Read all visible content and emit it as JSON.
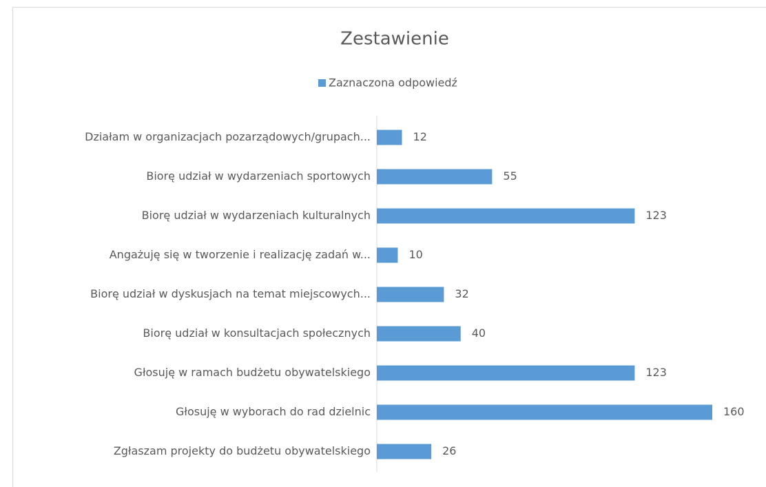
{
  "chart_data": {
    "type": "bar",
    "orientation": "horizontal",
    "title": "Zestawienie",
    "categories": [
      "Działam w organizacjach pozarządowych/grupach...",
      "Biorę udział w wydarzeniach sportowych",
      "Biorę udział w wydarzeniach kulturalnych",
      "Angażuję się w tworzenie i realizację zadań w...",
      "Biorę udział w dyskusjach na temat miejscowych...",
      "Biorę udział w konsultacjach społecznych",
      "Głosuję w ramach budżetu obywatelskiego",
      "Głosuję w wyborach do rad dzielnic",
      "Zgłaszam projekty do budżetu obywatelskiego"
    ],
    "series": [
      {
        "name": "Zaznaczona odpowiedź",
        "color": "#5b9bd5",
        "values": [
          12,
          55,
          123,
          10,
          32,
          40,
          123,
          160,
          26
        ]
      }
    ],
    "legend": "top"
  }
}
